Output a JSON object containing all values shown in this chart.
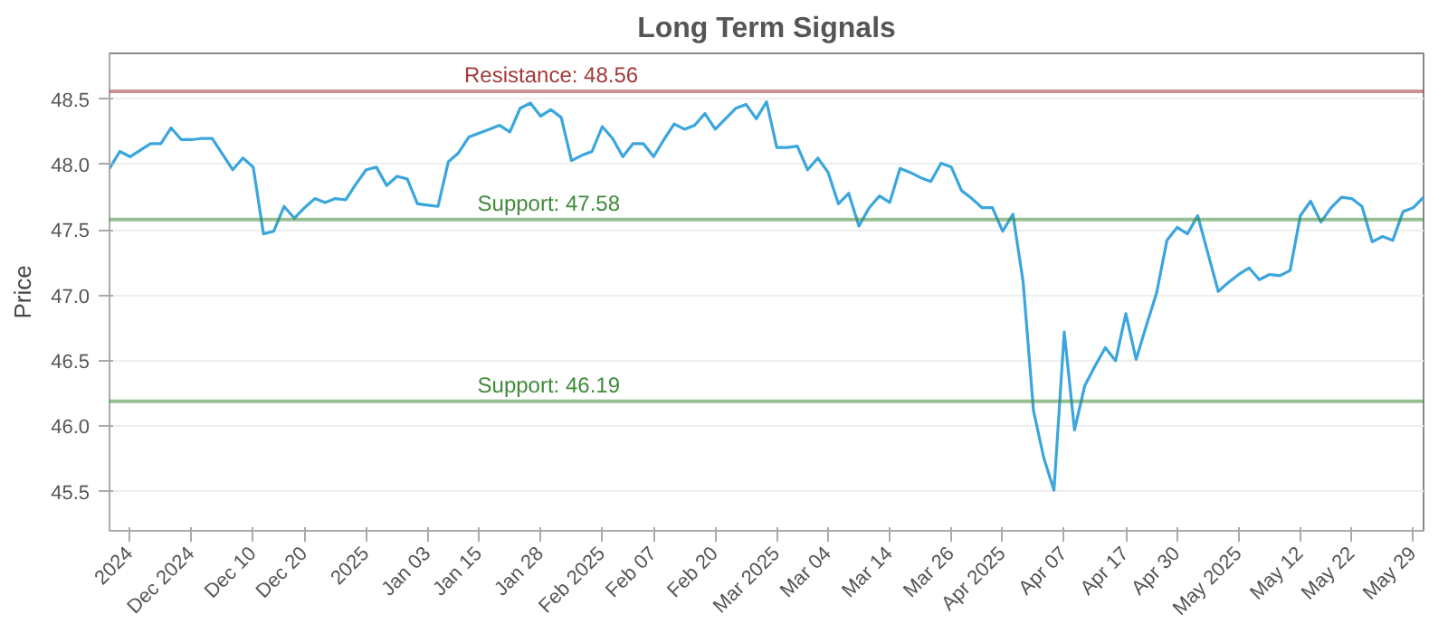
{
  "chart_data": {
    "type": "line",
    "title": "Long Term Signals",
    "ylabel": "Price",
    "categories": [
      null,
      null,
      "2024",
      null,
      null,
      null,
      null,
      null,
      "Dec 2024",
      null,
      null,
      null,
      null,
      null,
      "Dec 10",
      null,
      null,
      null,
      null,
      "Dec 20",
      null,
      null,
      null,
      null,
      null,
      "2025",
      null,
      null,
      null,
      null,
      null,
      "Jan 03",
      null,
      null,
      null,
      null,
      "Jan 15",
      null,
      null,
      null,
      null,
      null,
      "Jan 28",
      null,
      null,
      null,
      null,
      null,
      "Feb 2025",
      null,
      null,
      null,
      null,
      "Feb 07",
      null,
      null,
      null,
      null,
      null,
      "Feb 20",
      null,
      null,
      null,
      null,
      null,
      "Mar 2025",
      null,
      null,
      null,
      null,
      "Mar 04",
      null,
      null,
      null,
      null,
      null,
      "Mar 14",
      null,
      null,
      null,
      null,
      null,
      "Mar 26",
      null,
      null,
      null,
      null,
      "Apr 2025",
      null,
      null,
      null,
      null,
      null,
      "Apr 07",
      null,
      null,
      null,
      null,
      null,
      "Apr 17",
      null,
      null,
      null,
      null,
      "Apr 30",
      null,
      null,
      null,
      null,
      null,
      "May 2025",
      null,
      null,
      null,
      null,
      null,
      "May 12",
      null,
      null,
      null,
      null,
      "May 22",
      null,
      null,
      null,
      null,
      null,
      "May 29",
      null
    ],
    "series": [
      {
        "color": "#3aa6dd",
        "values": [
          47.97,
          48.1,
          48.06,
          48.11,
          48.16,
          48.16,
          48.28,
          48.19,
          48.19,
          48.2,
          48.2,
          48.08,
          47.96,
          48.05,
          47.98,
          47.47,
          47.49,
          47.68,
          47.59,
          47.67,
          47.74,
          47.71,
          47.74,
          47.73,
          47.85,
          47.96,
          47.98,
          47.84,
          47.91,
          47.89,
          47.7,
          47.69,
          47.68,
          48.02,
          48.09,
          48.21,
          48.24,
          48.27,
          48.3,
          48.25,
          48.43,
          48.47,
          48.37,
          48.42,
          48.36,
          48.03,
          48.07,
          48.1,
          48.29,
          48.2,
          48.06,
          48.16,
          48.16,
          48.06,
          48.19,
          48.31,
          48.27,
          48.3,
          48.39,
          48.27,
          48.35,
          48.43,
          48.46,
          48.35,
          48.48,
          48.13,
          48.13,
          48.14,
          47.96,
          48.05,
          47.94,
          47.7,
          47.78,
          47.53,
          47.67,
          47.76,
          47.71,
          47.97,
          47.94,
          47.9,
          47.87,
          48.01,
          47.98,
          47.8,
          47.74,
          47.67,
          47.67,
          47.49,
          47.62,
          47.1,
          46.12,
          45.76,
          45.51,
          46.72,
          45.97,
          46.31,
          46.46,
          46.6,
          46.5,
          46.86,
          46.51,
          46.77,
          47.02,
          47.42,
          47.52,
          47.47,
          47.61,
          47.32,
          47.03,
          47.1,
          47.16,
          47.21,
          47.12,
          47.16,
          47.15,
          47.19,
          47.61,
          47.72,
          47.56,
          47.67,
          47.75,
          47.74,
          47.68,
          47.41,
          47.45,
          47.42,
          47.64,
          47.67,
          47.75
        ]
      }
    ],
    "ylim": [
      45.2,
      48.85
    ],
    "yticks": [
      45.5,
      {
        "value": 46,
        "label": "46.0"
      },
      46.5,
      {
        "value": 47,
        "label": "47.0"
      },
      47.5,
      {
        "value": 48,
        "label": "48.0"
      },
      48.5
    ],
    "grid": "y",
    "marker": "none",
    "line_style": "solid",
    "ref_lines": [
      {
        "axis": "y",
        "value": 48.56,
        "label": "Resistance: 48.56",
        "color": "#a33a3a"
      },
      {
        "axis": "y",
        "value": 47.58,
        "label": "Support: 47.58",
        "color": "#3f8a3a"
      },
      {
        "axis": "y",
        "value": 46.19,
        "label": "Support: 46.19",
        "color": "#3f8a3a"
      }
    ]
  }
}
